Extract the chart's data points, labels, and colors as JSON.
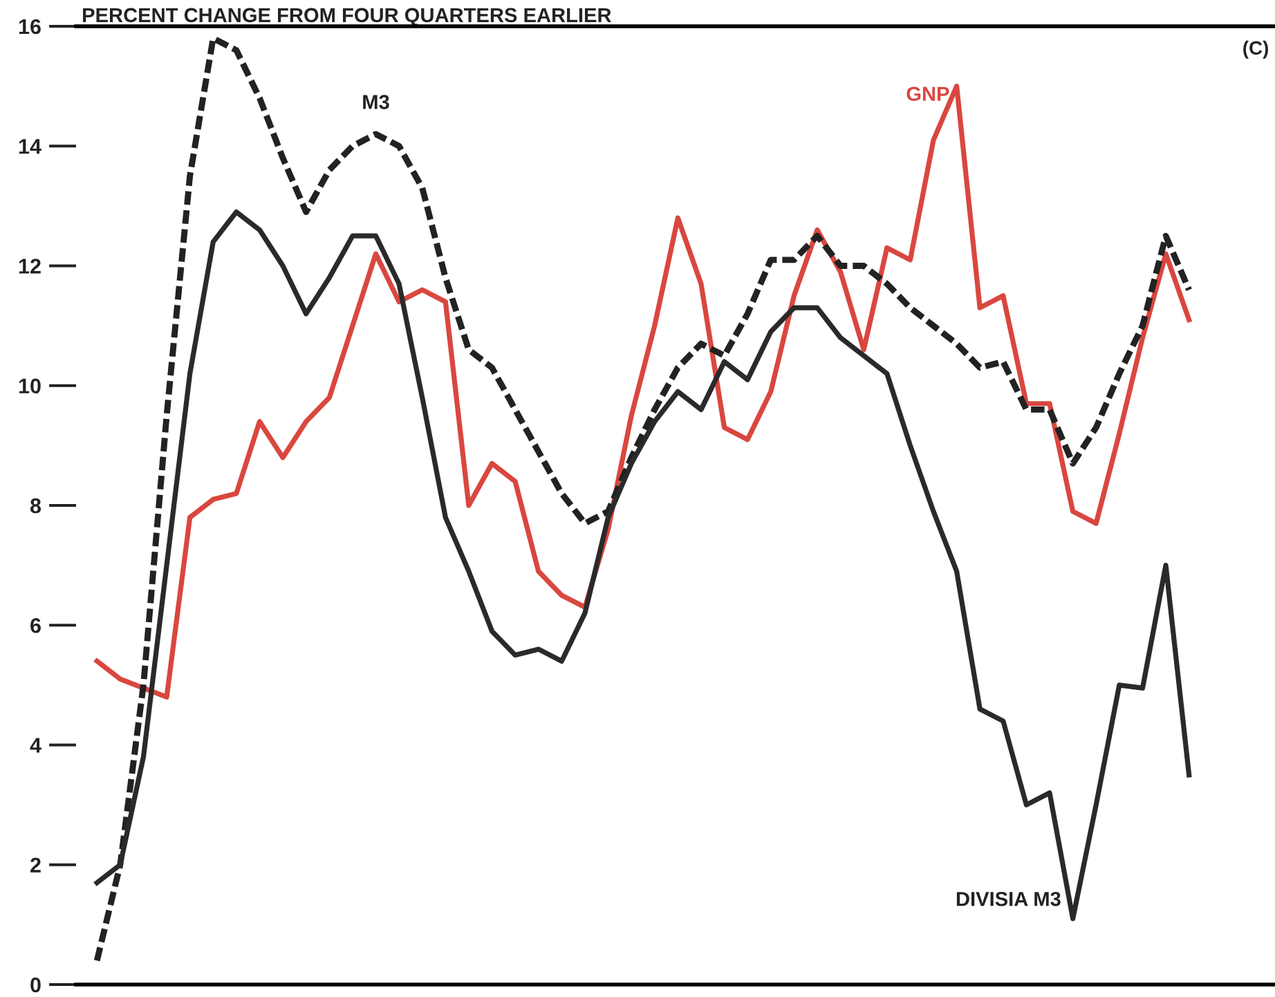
{
  "chart_data": {
    "type": "line",
    "ylabel": "PERCENT CHANGE FROM FOUR QUARTERS EARLIER",
    "annotations": [
      "(C)"
    ],
    "categories": [
      null,
      null,
      null,
      null,
      null,
      null,
      null,
      null,
      null,
      null,
      null,
      null,
      null,
      null,
      null,
      null,
      null,
      null,
      null,
      null,
      null,
      null,
      null,
      null,
      null,
      null,
      null,
      null,
      null,
      null,
      null,
      null,
      null,
      null,
      null,
      null,
      null,
      null,
      null,
      null,
      null,
      null,
      null,
      null,
      null,
      null,
      null,
      null
    ],
    "ylim": [
      0,
      16
    ],
    "yticks": [
      0,
      2,
      4,
      6,
      8,
      10,
      12,
      14,
      16
    ],
    "tick_labels": "y",
    "grid": false,
    "legend": false,
    "series": [
      {
        "name": "GNP",
        "color": "#d9473f",
        "line_style": "solid",
        "values": [
          5.4,
          5.1,
          4.95,
          4.8,
          7.8,
          8.1,
          8.2,
          9.4,
          8.8,
          9.4,
          9.8,
          11.0,
          12.2,
          11.4,
          11.6,
          11.4,
          8.0,
          8.7,
          8.4,
          6.9,
          6.5,
          6.3,
          7.6,
          9.5,
          11.0,
          12.8,
          11.7,
          9.3,
          9.1,
          9.9,
          11.5,
          12.6,
          11.9,
          10.6,
          12.3,
          12.1,
          14.1,
          15.0,
          11.3,
          11.5,
          9.7,
          9.7,
          7.9,
          7.7,
          9.2,
          10.8,
          12.2,
          11.1
        ]
      },
      {
        "name": "M3",
        "color": "#222222",
        "line_style": "dashed",
        "values": [
          0.4,
          2.0,
          5.0,
          9.5,
          13.5,
          15.8,
          15.6,
          14.8,
          13.8,
          12.9,
          13.6,
          14.0,
          14.2,
          14.0,
          13.3,
          11.8,
          10.6,
          10.3,
          9.6,
          8.9,
          8.2,
          7.7,
          7.9,
          8.8,
          9.6,
          10.3,
          10.7,
          10.5,
          11.2,
          12.1,
          12.1,
          12.5,
          12.0,
          12.0,
          11.7,
          11.3,
          11.0,
          10.7,
          10.3,
          10.4,
          9.6,
          9.6,
          8.7,
          9.3,
          10.2,
          11.0,
          12.5,
          11.6
        ]
      },
      {
        "name": "DIVISIA M3",
        "color": "#2a2a2a",
        "line_style": "solid",
        "values": [
          1.7,
          2.0,
          3.8,
          7.0,
          10.2,
          12.4,
          12.9,
          12.6,
          12.0,
          11.2,
          11.8,
          12.5,
          12.5,
          11.7,
          9.8,
          7.8,
          6.9,
          5.9,
          5.5,
          5.6,
          5.4,
          6.2,
          7.8,
          8.7,
          9.4,
          9.9,
          9.6,
          10.4,
          10.1,
          10.9,
          11.3,
          11.3,
          10.8,
          10.5,
          10.2,
          9.0,
          7.9,
          6.9,
          4.6,
          4.4,
          3.0,
          3.2,
          1.1,
          3.0,
          5.0,
          4.95,
          7.0,
          3.5
        ]
      }
    ]
  }
}
